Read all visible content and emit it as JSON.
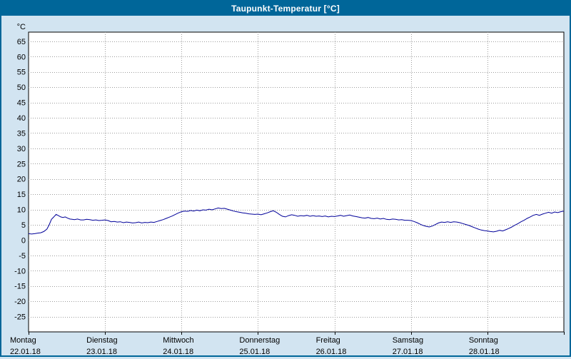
{
  "title": "Taupunkt-Temperatur [°C]",
  "colors": {
    "titlebar": "#006699",
    "background": "#d2e4f1",
    "plot_background": "#ffffff",
    "plot_border": "#000000",
    "grid": "#9c9c9c",
    "line": "#000099",
    "label": "#000000"
  },
  "chart_data": {
    "type": "line",
    "title": "Taupunkt-Temperatur [°C]",
    "ylabel": "°C",
    "xlabel": "",
    "ylim": [
      -30,
      68
    ],
    "yticks": [
      65,
      60,
      55,
      50,
      45,
      40,
      35,
      30,
      25,
      20,
      15,
      10,
      5,
      0,
      -5,
      -10,
      -15,
      -20,
      -25
    ],
    "x_range_days": 7,
    "grid": true,
    "legend": "none",
    "days": [
      {
        "name": "Montag",
        "date": "22.01.18"
      },
      {
        "name": "Dienstag",
        "date": "23.01.18"
      },
      {
        "name": "Mittwoch",
        "date": "24.01.18"
      },
      {
        "name": "Donnerstag",
        "date": "25.01.18"
      },
      {
        "name": "Freitag",
        "date": "26.01.18"
      },
      {
        "name": "Samstag",
        "date": "27.01.18"
      },
      {
        "name": "Sonntag",
        "date": "28.01.18"
      }
    ],
    "series": [
      {
        "name": "Taupunkt-Temperatur",
        "color": "#000099",
        "points": [
          [
            0.0,
            2.1
          ],
          [
            0.04,
            2.0
          ],
          [
            0.08,
            2.1
          ],
          [
            0.12,
            2.3
          ],
          [
            0.16,
            2.4
          ],
          [
            0.2,
            2.8
          ],
          [
            0.24,
            3.6
          ],
          [
            0.27,
            5.0
          ],
          [
            0.3,
            6.8
          ],
          [
            0.33,
            7.6
          ],
          [
            0.36,
            8.4
          ],
          [
            0.39,
            8.0
          ],
          [
            0.42,
            7.6
          ],
          [
            0.45,
            7.4
          ],
          [
            0.48,
            7.6
          ],
          [
            0.51,
            7.2
          ],
          [
            0.54,
            6.9
          ],
          [
            0.57,
            6.8
          ],
          [
            0.6,
            6.7
          ],
          [
            0.64,
            6.9
          ],
          [
            0.68,
            6.6
          ],
          [
            0.72,
            6.6
          ],
          [
            0.76,
            6.8
          ],
          [
            0.8,
            6.7
          ],
          [
            0.84,
            6.5
          ],
          [
            0.88,
            6.6
          ],
          [
            0.92,
            6.4
          ],
          [
            0.96,
            6.5
          ],
          [
            1.0,
            6.6
          ],
          [
            1.04,
            6.4
          ],
          [
            1.08,
            6.0
          ],
          [
            1.12,
            6.1
          ],
          [
            1.16,
            5.9
          ],
          [
            1.2,
            6.0
          ],
          [
            1.24,
            5.7
          ],
          [
            1.28,
            5.9
          ],
          [
            1.32,
            5.8
          ],
          [
            1.36,
            5.6
          ],
          [
            1.4,
            5.7
          ],
          [
            1.44,
            5.9
          ],
          [
            1.48,
            5.6
          ],
          [
            1.52,
            5.8
          ],
          [
            1.56,
            5.7
          ],
          [
            1.6,
            5.9
          ],
          [
            1.64,
            5.8
          ],
          [
            1.68,
            6.1
          ],
          [
            1.72,
            6.4
          ],
          [
            1.76,
            6.7
          ],
          [
            1.8,
            7.1
          ],
          [
            1.84,
            7.5
          ],
          [
            1.88,
            7.9
          ],
          [
            1.92,
            8.4
          ],
          [
            1.96,
            8.9
          ],
          [
            2.0,
            9.3
          ],
          [
            2.04,
            9.5
          ],
          [
            2.08,
            9.4
          ],
          [
            2.12,
            9.7
          ],
          [
            2.16,
            9.5
          ],
          [
            2.2,
            9.8
          ],
          [
            2.24,
            9.6
          ],
          [
            2.28,
            9.9
          ],
          [
            2.32,
            9.8
          ],
          [
            2.36,
            10.1
          ],
          [
            2.4,
            9.9
          ],
          [
            2.44,
            10.2
          ],
          [
            2.48,
            10.5
          ],
          [
            2.52,
            10.3
          ],
          [
            2.56,
            10.4
          ],
          [
            2.6,
            10.1
          ],
          [
            2.64,
            9.8
          ],
          [
            2.68,
            9.5
          ],
          [
            2.72,
            9.3
          ],
          [
            2.76,
            9.1
          ],
          [
            2.8,
            8.9
          ],
          [
            2.84,
            8.8
          ],
          [
            2.88,
            8.6
          ],
          [
            2.92,
            8.5
          ],
          [
            2.96,
            8.4
          ],
          [
            3.0,
            8.5
          ],
          [
            3.04,
            8.3
          ],
          [
            3.08,
            8.6
          ],
          [
            3.12,
            8.9
          ],
          [
            3.16,
            9.3
          ],
          [
            3.2,
            9.6
          ],
          [
            3.24,
            9.1
          ],
          [
            3.28,
            8.4
          ],
          [
            3.32,
            7.8
          ],
          [
            3.36,
            7.6
          ],
          [
            3.4,
            8.0
          ],
          [
            3.44,
            8.3
          ],
          [
            3.48,
            8.1
          ],
          [
            3.52,
            7.8
          ],
          [
            3.56,
            8.0
          ],
          [
            3.6,
            7.9
          ],
          [
            3.64,
            8.1
          ],
          [
            3.68,
            7.8
          ],
          [
            3.72,
            8.0
          ],
          [
            3.76,
            7.8
          ],
          [
            3.8,
            7.9
          ],
          [
            3.84,
            7.7
          ],
          [
            3.88,
            7.9
          ],
          [
            3.92,
            7.6
          ],
          [
            3.96,
            7.8
          ],
          [
            4.0,
            7.7
          ],
          [
            4.04,
            7.9
          ],
          [
            4.08,
            8.1
          ],
          [
            4.12,
            7.8
          ],
          [
            4.16,
            8.0
          ],
          [
            4.2,
            8.2
          ],
          [
            4.24,
            7.9
          ],
          [
            4.28,
            7.7
          ],
          [
            4.32,
            7.5
          ],
          [
            4.36,
            7.3
          ],
          [
            4.4,
            7.2
          ],
          [
            4.44,
            7.4
          ],
          [
            4.48,
            7.1
          ],
          [
            4.52,
            7.0
          ],
          [
            4.56,
            7.2
          ],
          [
            4.6,
            6.9
          ],
          [
            4.64,
            7.1
          ],
          [
            4.68,
            6.8
          ],
          [
            4.72,
            6.7
          ],
          [
            4.76,
            6.9
          ],
          [
            4.8,
            6.8
          ],
          [
            4.84,
            6.6
          ],
          [
            4.88,
            6.7
          ],
          [
            4.92,
            6.5
          ],
          [
            4.96,
            6.5
          ],
          [
            5.0,
            6.4
          ],
          [
            5.04,
            6.1
          ],
          [
            5.08,
            5.7
          ],
          [
            5.12,
            5.2
          ],
          [
            5.16,
            4.8
          ],
          [
            5.2,
            4.5
          ],
          [
            5.24,
            4.3
          ],
          [
            5.28,
            4.6
          ],
          [
            5.32,
            5.1
          ],
          [
            5.36,
            5.6
          ],
          [
            5.4,
            5.9
          ],
          [
            5.44,
            5.8
          ],
          [
            5.48,
            6.0
          ],
          [
            5.52,
            5.8
          ],
          [
            5.56,
            6.0
          ],
          [
            5.6,
            5.9
          ],
          [
            5.64,
            5.7
          ],
          [
            5.68,
            5.4
          ],
          [
            5.72,
            5.1
          ],
          [
            5.76,
            4.8
          ],
          [
            5.8,
            4.4
          ],
          [
            5.84,
            4.0
          ],
          [
            5.88,
            3.6
          ],
          [
            5.92,
            3.3
          ],
          [
            5.96,
            3.1
          ],
          [
            6.0,
            3.0
          ],
          [
            6.04,
            2.8
          ],
          [
            6.08,
            2.7
          ],
          [
            6.12,
            2.9
          ],
          [
            6.16,
            3.2
          ],
          [
            6.2,
            3.0
          ],
          [
            6.24,
            3.4
          ],
          [
            6.28,
            3.8
          ],
          [
            6.32,
            4.3
          ],
          [
            6.36,
            4.9
          ],
          [
            6.4,
            5.4
          ],
          [
            6.44,
            6.0
          ],
          [
            6.48,
            6.5
          ],
          [
            6.52,
            7.1
          ],
          [
            6.56,
            7.6
          ],
          [
            6.6,
            8.1
          ],
          [
            6.64,
            8.4
          ],
          [
            6.68,
            8.1
          ],
          [
            6.72,
            8.5
          ],
          [
            6.76,
            8.8
          ],
          [
            6.8,
            9.1
          ],
          [
            6.84,
            8.8
          ],
          [
            6.88,
            9.2
          ],
          [
            6.92,
            9.0
          ],
          [
            6.96,
            9.3
          ],
          [
            7.0,
            9.5
          ]
        ]
      }
    ]
  }
}
